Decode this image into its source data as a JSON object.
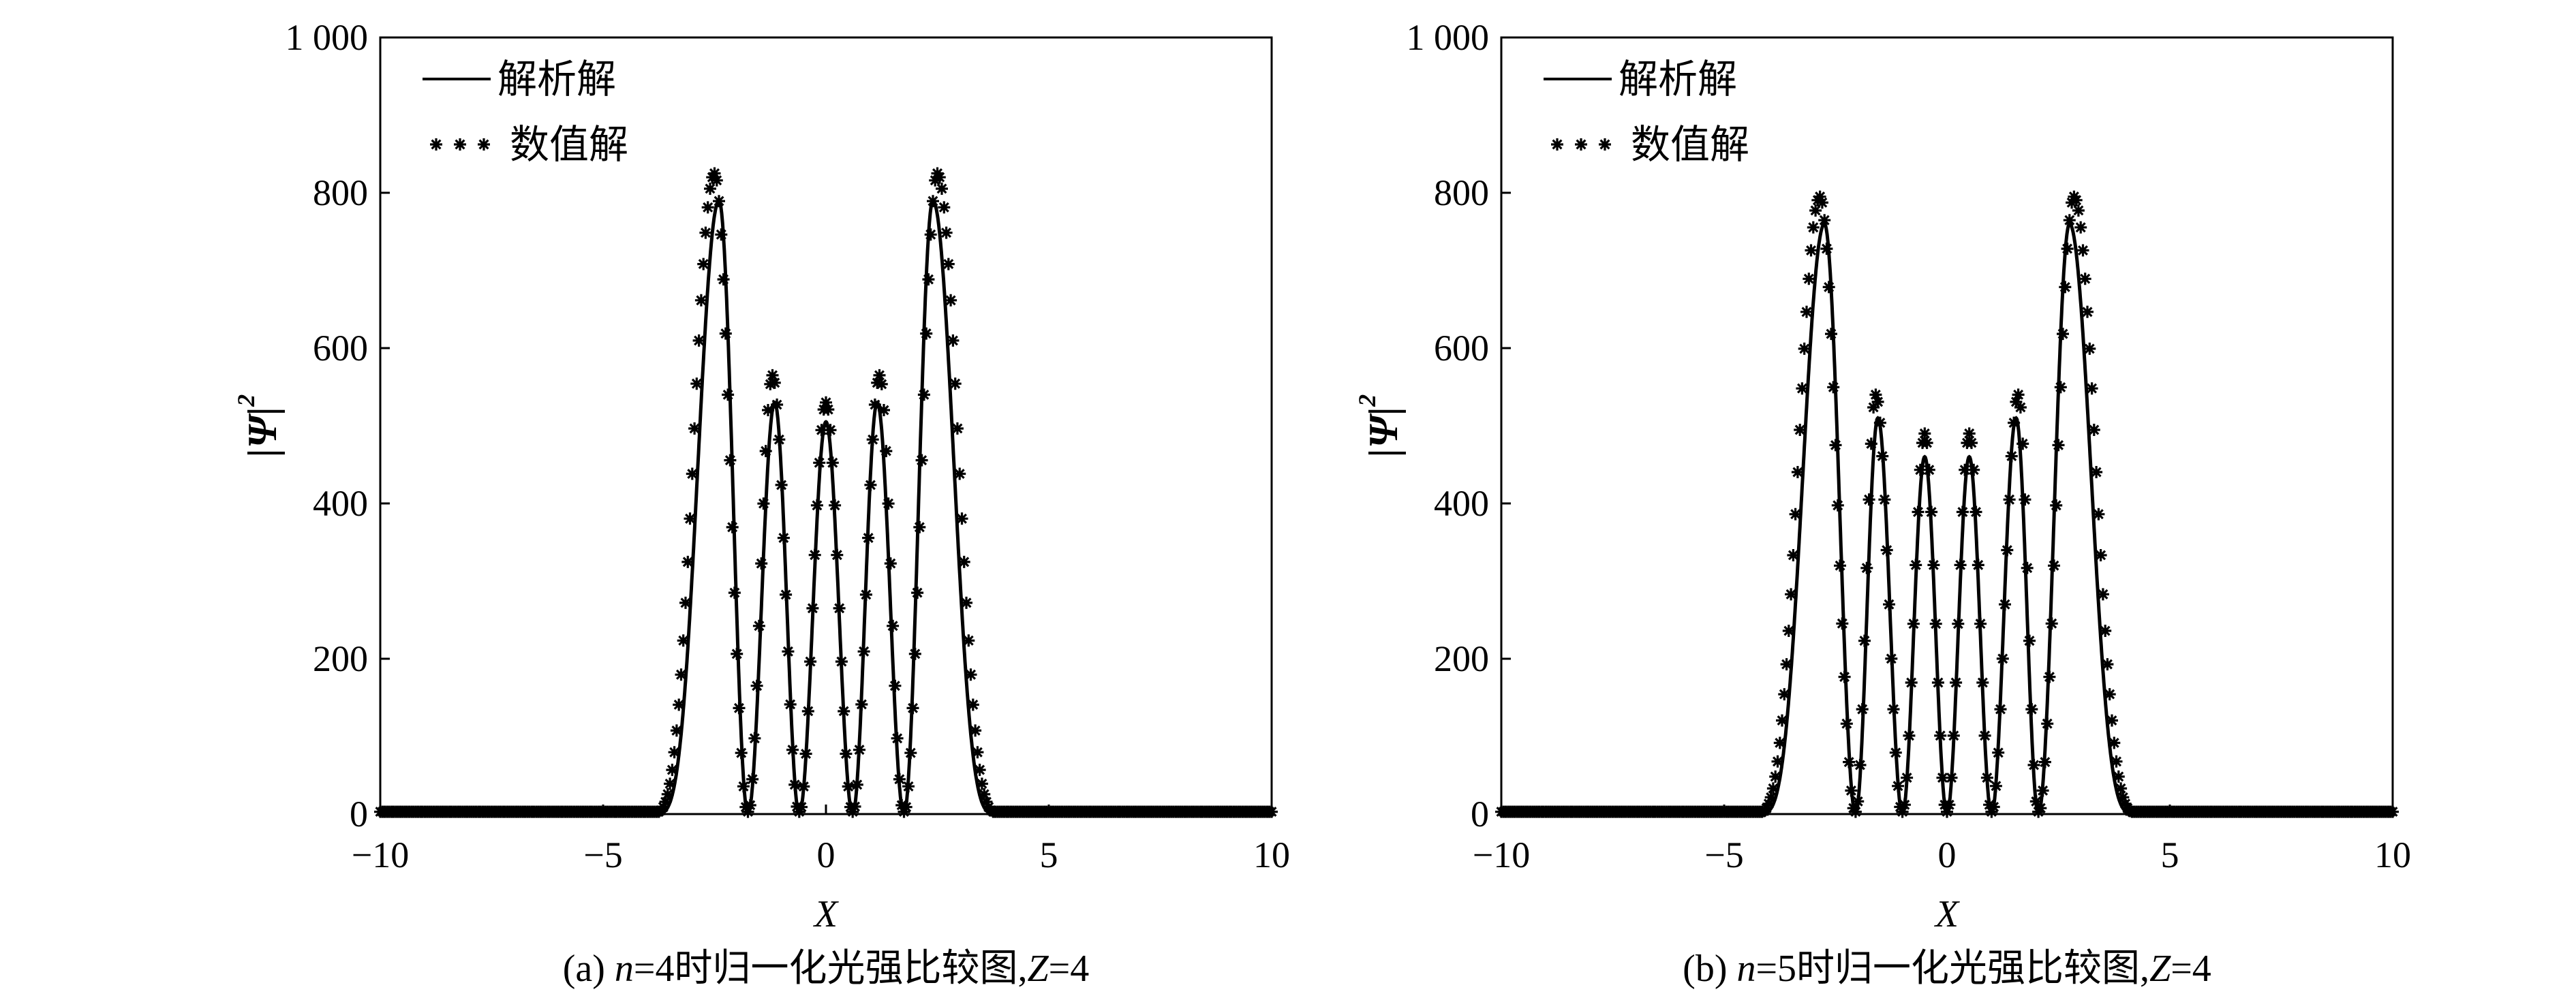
{
  "chart_data": [
    {
      "type": "line",
      "caption": {
        "prefix": "(a) ",
        "var": "n",
        "mid": "=4时归一化光强比较图,",
        "var2": "Z",
        "suffix": "=4"
      },
      "xlabel": "X",
      "ylabel": {
        "main": "|Ψ|",
        "sup": "2"
      },
      "xlim": [
        -10,
        10
      ],
      "ylim": [
        0,
        1000
      ],
      "xticks": [
        -10,
        -5,
        0,
        5,
        10
      ],
      "xtick_labels": [
        "−10",
        "−5",
        "0",
        "5",
        "10"
      ],
      "yticks": [
        0,
        200,
        400,
        600,
        800,
        1000
      ],
      "ytick_labels": [
        "0",
        "200",
        "400",
        "600",
        "800",
        "1 000"
      ],
      "legend_position": "top-left",
      "series": [
        {
          "name": "解析解",
          "style": "solid-line",
          "peaks": [
            [
              -2.4,
              790
            ],
            [
              -1.15,
              530
            ],
            [
              0.0,
              505
            ],
            [
              1.15,
              530
            ],
            [
              2.4,
              790
            ]
          ],
          "zeros": [
            -1.75,
            -0.6,
            0.6,
            1.75
          ],
          "outer_extent": [
            -3.9,
            3.9
          ]
        },
        {
          "name": "数值解",
          "style": "asterisk-markers",
          "peaks": [
            [
              -2.5,
              825
            ],
            [
              -1.2,
              565
            ],
            [
              0.0,
              530
            ],
            [
              1.2,
              565
            ],
            [
              2.5,
              825
            ]
          ],
          "zeros": [
            -1.75,
            -0.6,
            0.6,
            1.75
          ],
          "outer_extent": [
            -4.0,
            4.0
          ]
        }
      ]
    },
    {
      "type": "line",
      "caption": {
        "prefix": "(b) ",
        "var": "n",
        "mid": "=5时归一化光强比较图,",
        "var2": "Z",
        "suffix": "=4"
      },
      "xlabel": "X",
      "ylabel": {
        "main": "|Ψ|",
        "sup": "2"
      },
      "xlim": [
        -10,
        10
      ],
      "ylim": [
        0,
        1000
      ],
      "xticks": [
        -10,
        -5,
        0,
        5,
        10
      ],
      "xtick_labels": [
        "−10",
        "−5",
        "0",
        "5",
        "10"
      ],
      "yticks": [
        0,
        200,
        400,
        600,
        800,
        1000
      ],
      "ytick_labels": [
        "0",
        "200",
        "400",
        "600",
        "800",
        "1 000"
      ],
      "legend_position": "top-left",
      "series": [
        {
          "name": "解析解",
          "style": "solid-line",
          "peaks": [
            [
              -2.75,
              760
            ],
            [
              -1.55,
              510
            ],
            [
              -0.5,
              460
            ],
            [
              0.5,
              460
            ],
            [
              1.55,
              510
            ],
            [
              2.75,
              760
            ]
          ],
          "zeros": [
            -2.05,
            -1.0,
            0.0,
            1.0,
            2.05
          ],
          "outer_extent": [
            -4.3,
            4.3
          ]
        },
        {
          "name": "数值解",
          "style": "asterisk-markers",
          "peaks": [
            [
              -2.85,
              795
            ],
            [
              -1.6,
              540
            ],
            [
              -0.5,
              490
            ],
            [
              0.5,
              490
            ],
            [
              1.6,
              540
            ],
            [
              2.85,
              795
            ]
          ],
          "zeros": [
            -2.05,
            -1.0,
            0.0,
            1.0,
            2.05
          ],
          "outer_extent": [
            -4.4,
            4.4
          ]
        }
      ]
    }
  ]
}
